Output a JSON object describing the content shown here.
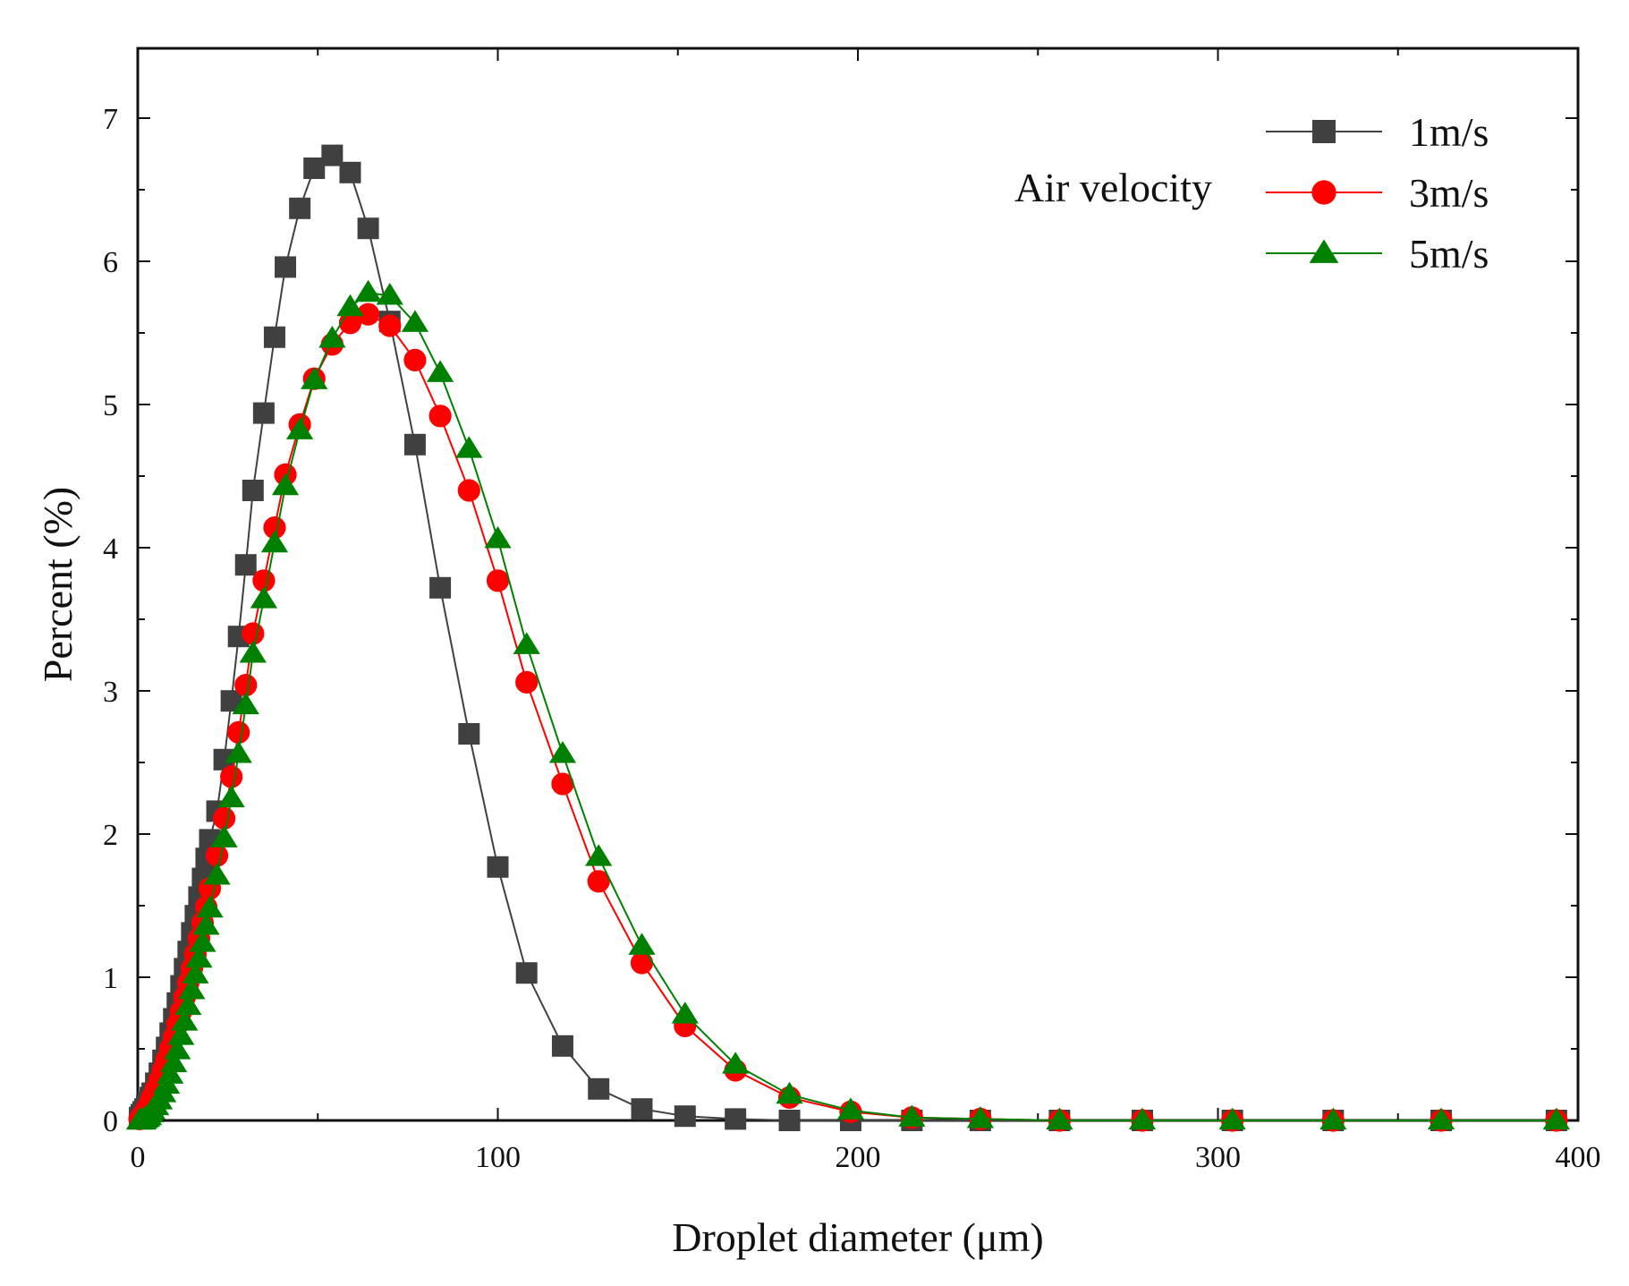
{
  "chart_data": {
    "type": "line",
    "title": "",
    "xlabel": "Droplet diameter (μm)",
    "ylabel": "Percent (%)",
    "xlim": [
      0,
      400
    ],
    "ylim": [
      0,
      7.5
    ],
    "xticks": [
      0,
      100,
      200,
      300,
      400
    ],
    "xtick_labels": [
      "0",
      "100",
      "200",
      "300",
      "400"
    ],
    "yticks": [
      0,
      1,
      2,
      3,
      4,
      5,
      6,
      7
    ],
    "ytick_labels": [
      "0",
      "1",
      "2",
      "3",
      "4",
      "5",
      "6",
      "7"
    ],
    "grid": false,
    "legend": {
      "title": "Air velocity",
      "position": "top-right"
    },
    "series": [
      {
        "name": "1m/s",
        "color": "#404040",
        "marker": "square",
        "x": [
          0.5,
          1,
          1.5,
          2,
          2.5,
          3,
          3.5,
          4,
          5,
          6,
          7,
          8,
          9,
          10,
          11,
          12,
          13,
          14,
          15,
          16,
          17,
          18,
          19,
          20,
          22,
          24,
          26,
          28,
          30,
          32,
          35,
          38,
          41,
          45,
          49,
          54,
          59,
          64,
          70,
          77,
          84,
          92,
          100,
          108,
          118,
          128,
          140,
          152,
          166,
          181,
          198,
          215,
          234,
          256,
          279,
          304,
          332,
          362,
          394
        ],
        "y": [
          0.02,
          0.04,
          0.06,
          0.08,
          0.1,
          0.13,
          0.16,
          0.19,
          0.26,
          0.33,
          0.42,
          0.51,
          0.61,
          0.71,
          0.82,
          0.94,
          1.06,
          1.18,
          1.31,
          1.43,
          1.56,
          1.69,
          1.83,
          1.96,
          2.16,
          2.52,
          2.93,
          3.38,
          3.88,
          4.4,
          4.94,
          5.47,
          5.96,
          6.37,
          6.65,
          6.74,
          6.62,
          6.23,
          5.58,
          4.72,
          3.72,
          2.7,
          1.77,
          1.03,
          0.52,
          0.22,
          0.08,
          0.03,
          0.01,
          0.0,
          0.0,
          0.0,
          0.0,
          0.0,
          0.0,
          0.0,
          0.0,
          0.0,
          0.0
        ]
      },
      {
        "name": "3m/s",
        "color": "#ff0000",
        "marker": "circle",
        "x": [
          0.5,
          1,
          1.5,
          2,
          2.5,
          3,
          3.5,
          4,
          5,
          6,
          7,
          8,
          9,
          10,
          11,
          12,
          13,
          14,
          15,
          16,
          17,
          18,
          19,
          20,
          22,
          24,
          26,
          28,
          30,
          32,
          35,
          38,
          41,
          45,
          49,
          54,
          59,
          64,
          70,
          77,
          84,
          92,
          100,
          108,
          118,
          128,
          140,
          152,
          166,
          181,
          198,
          215,
          234,
          256,
          279,
          304,
          332,
          362,
          394
        ],
        "y": [
          0.01,
          0.02,
          0.04,
          0.06,
          0.08,
          0.1,
          0.13,
          0.16,
          0.22,
          0.28,
          0.35,
          0.42,
          0.5,
          0.58,
          0.67,
          0.76,
          0.86,
          0.96,
          1.06,
          1.16,
          1.27,
          1.38,
          1.49,
          1.62,
          1.85,
          2.11,
          2.4,
          2.71,
          3.04,
          3.4,
          3.77,
          4.14,
          4.51,
          4.86,
          5.18,
          5.42,
          5.57,
          5.63,
          5.55,
          5.31,
          4.92,
          4.4,
          3.77,
          3.06,
          2.35,
          1.67,
          1.1,
          0.66,
          0.35,
          0.16,
          0.06,
          0.02,
          0.01,
          0.0,
          0.0,
          0.0,
          0.0,
          0.0,
          0.0
        ]
      },
      {
        "name": "5m/s",
        "color": "#008000",
        "marker": "triangle",
        "x": [
          0.5,
          1,
          1.5,
          2,
          2.5,
          3,
          3.5,
          4,
          5,
          6,
          7,
          8,
          9,
          10,
          11,
          12,
          13,
          14,
          15,
          16,
          17,
          18,
          19,
          20,
          22,
          24,
          26,
          28,
          30,
          32,
          35,
          38,
          41,
          45,
          49,
          54,
          59,
          64,
          70,
          77,
          84,
          92,
          100,
          108,
          118,
          128,
          140,
          152,
          166,
          181,
          198,
          215,
          234,
          256,
          279,
          304,
          332,
          362,
          394
        ],
        "y": [
          0.0,
          0.0,
          0.0,
          0.01,
          0.02,
          0.03,
          0.05,
          0.07,
          0.1,
          0.14,
          0.19,
          0.25,
          0.32,
          0.4,
          0.49,
          0.59,
          0.69,
          0.8,
          0.91,
          1.02,
          1.13,
          1.24,
          1.36,
          1.48,
          1.71,
          1.97,
          2.25,
          2.56,
          2.9,
          3.26,
          3.64,
          4.03,
          4.43,
          4.82,
          5.17,
          5.46,
          5.68,
          5.78,
          5.76,
          5.57,
          5.22,
          4.69,
          4.06,
          3.32,
          2.56,
          1.84,
          1.22,
          0.74,
          0.39,
          0.18,
          0.07,
          0.02,
          0.01,
          0.0,
          0.0,
          0.0,
          0.0,
          0.0,
          0.0
        ]
      }
    ]
  }
}
